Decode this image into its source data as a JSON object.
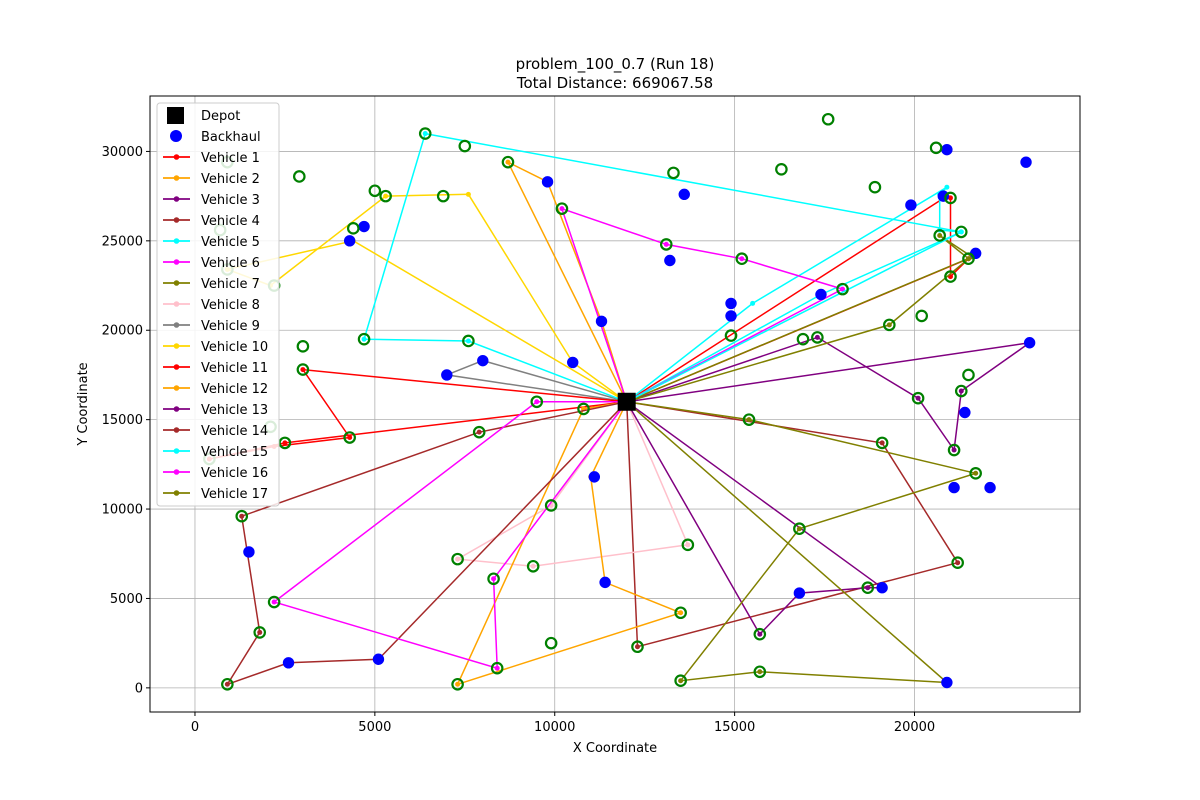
{
  "chart_data": {
    "type": "scatter",
    "title_line1": "problem_100_0.7 (Run 18)",
    "title_line2": "Total Distance: 669067.58",
    "xlabel": "X Coordinate",
    "ylabel": "Y Coordinate",
    "xlim": [
      -1250,
      24600
    ],
    "ylim": [
      -1350,
      33100
    ],
    "xticks": [
      0,
      5000,
      10000,
      15000,
      20000
    ],
    "yticks": [
      0,
      5000,
      10000,
      15000,
      20000,
      25000,
      30000
    ],
    "grid": true,
    "legend_position": "top-left",
    "depot": {
      "label": "Depot",
      "x": 12000,
      "y": 16000,
      "color": "#000000"
    },
    "backhaul_label": "Backhaul",
    "backhaul_color": "#0000ff",
    "linehaul_edge_color": "#008000",
    "routes": [
      {
        "name": "Vehicle 1",
        "color": "#ff0000",
        "points": [
          [
            20900,
            27500
          ],
          [
            21000,
            27400
          ],
          [
            21000,
            23000
          ],
          [
            21500,
            24000
          ]
        ]
      },
      {
        "name": "Vehicle 2",
        "color": "#ffa500",
        "points": [
          [
            8700,
            29400
          ],
          [
            9800,
            28300
          ],
          [
            11300,
            20500
          ]
        ]
      },
      {
        "name": "Vehicle 3",
        "color": "#800080",
        "points": [
          [
            17300,
            19600
          ],
          [
            20100,
            16200
          ],
          [
            21100,
            13300
          ],
          [
            21300,
            16600
          ],
          [
            23200,
            19300
          ]
        ]
      },
      {
        "name": "Vehicle 4",
        "color": "#a52a2a",
        "points": [
          [
            19100,
            13700
          ],
          [
            21200,
            7000
          ],
          [
            12300,
            2300
          ]
        ]
      },
      {
        "name": "Vehicle 5",
        "color": "#00ffff",
        "points": [
          [
            17400,
            22000
          ],
          [
            21300,
            25500
          ],
          [
            20700,
            25600
          ],
          [
            20700,
            27600
          ],
          [
            20900,
            28000
          ],
          [
            15500,
            21500
          ]
        ]
      },
      {
        "name": "Vehicle 6",
        "color": "#ff00ff",
        "points": [
          [
            10200,
            26800
          ],
          [
            13100,
            24800
          ],
          [
            15200,
            24000
          ],
          [
            18000,
            22300
          ]
        ]
      },
      {
        "name": "Vehicle 7",
        "color": "#808000",
        "points": [
          [
            19300,
            20300
          ],
          [
            21500,
            24000
          ],
          [
            20700,
            25300
          ],
          [
            21600,
            24100
          ]
        ]
      },
      {
        "name": "Vehicle 8",
        "color": "#ffc0cb",
        "points": [
          [
            9900,
            10200
          ],
          [
            7300,
            7200
          ],
          [
            9400,
            6800
          ],
          [
            13700,
            8000
          ]
        ]
      },
      {
        "name": "Vehicle 9",
        "color": "#808080",
        "points": [
          [
            7000,
            17500
          ],
          [
            8000,
            18300
          ]
        ]
      },
      {
        "name": "Vehicle 10",
        "color": "#ffd700",
        "points": [
          [
            10500,
            18200
          ],
          [
            7600,
            27600
          ],
          [
            5300,
            27500
          ],
          [
            2100,
            22500
          ],
          [
            900,
            23400
          ],
          [
            4400,
            25000
          ]
        ]
      },
      {
        "name": "Vehicle 11",
        "color": "#ff0000",
        "points": [
          [
            3000,
            17800
          ],
          [
            4300,
            14000
          ],
          [
            2200,
            13500
          ],
          [
            400,
            12800
          ],
          [
            2500,
            13700
          ]
        ]
      },
      {
        "name": "Vehicle 12",
        "color": "#ffa500",
        "points": [
          [
            10800,
            15600
          ],
          [
            7300,
            200
          ],
          [
            13500,
            4200
          ],
          [
            11400,
            5900
          ],
          [
            11000,
            11800
          ]
        ]
      },
      {
        "name": "Vehicle 13",
        "color": "#800080",
        "points": [
          [
            15700,
            3000
          ],
          [
            16800,
            5300
          ],
          [
            18700,
            5600
          ],
          [
            19100,
            5600
          ]
        ]
      },
      {
        "name": "Vehicle 14",
        "color": "#a52a2a",
        "points": [
          [
            7900,
            14300
          ],
          [
            1300,
            9600
          ],
          [
            1800,
            3100
          ],
          [
            900,
            200
          ],
          [
            2600,
            1400
          ],
          [
            5100,
            1600
          ]
        ]
      },
      {
        "name": "Vehicle 15",
        "color": "#00ffff",
        "points": [
          [
            7600,
            19400
          ],
          [
            4700,
            19500
          ],
          [
            6400,
            31000
          ],
          [
            21300,
            25500
          ]
        ]
      },
      {
        "name": "Vehicle 16",
        "color": "#ff00ff",
        "points": [
          [
            9500,
            16000
          ],
          [
            2200,
            4800
          ],
          [
            8400,
            1100
          ],
          [
            8300,
            6100
          ]
        ]
      },
      {
        "name": "Vehicle 17",
        "color": "#808000",
        "points": [
          [
            15400,
            15000
          ],
          [
            21700,
            12000
          ],
          [
            16800,
            8900
          ],
          [
            13500,
            400
          ],
          [
            15700,
            900
          ],
          [
            20900,
            300
          ]
        ]
      }
    ],
    "customers": [
      [
        0,
        0,
        0
      ],
      [
        23200,
        19300,
        1
      ],
      [
        22100,
        11200,
        1
      ],
      [
        21100,
        11200,
        1
      ],
      [
        21700,
        24300,
        1
      ],
      [
        23100,
        29400,
        1
      ],
      [
        20900,
        30100,
        1
      ],
      [
        19900,
        27000,
        1
      ],
      [
        17400,
        22000,
        1
      ],
      [
        14900,
        20800,
        1
      ],
      [
        14900,
        21500,
        1
      ],
      [
        13200,
        23900,
        1
      ],
      [
        13600,
        27600,
        1
      ],
      [
        9800,
        28300,
        1
      ],
      [
        11300,
        20500,
        1
      ],
      [
        10500,
        18200,
        1
      ],
      [
        8000,
        18300,
        1
      ],
      [
        7000,
        17500,
        1
      ],
      [
        4700,
        25800,
        1
      ],
      [
        4300,
        25000,
        1
      ],
      [
        11100,
        11800,
        1
      ],
      [
        11400,
        5900,
        1
      ],
      [
        19100,
        5600,
        1
      ],
      [
        20900,
        300,
        1
      ],
      [
        1500,
        7600,
        1
      ],
      [
        2600,
        1400,
        1
      ],
      [
        5100,
        1600,
        1
      ],
      [
        20800,
        27500,
        1
      ],
      [
        16800,
        5300,
        1
      ],
      [
        21400,
        15400,
        1
      ],
      [
        6400,
        31000,
        0
      ],
      [
        7500,
        30300,
        0
      ],
      [
        2900,
        28600,
        0
      ],
      [
        5000,
        27800,
        0
      ],
      [
        5300,
        27500,
        0
      ],
      [
        6900,
        27500,
        0
      ],
      [
        8700,
        29400,
        0
      ],
      [
        13300,
        28800,
        0
      ],
      [
        16300,
        29000,
        0
      ],
      [
        17600,
        31800,
        0
      ],
      [
        20600,
        30200,
        0
      ],
      [
        18900,
        28000,
        0
      ],
      [
        21000,
        27400,
        0
      ],
      [
        20700,
        25300,
        0
      ],
      [
        21300,
        25500,
        0
      ],
      [
        21500,
        24000,
        0
      ],
      [
        21000,
        23000,
        0
      ],
      [
        19300,
        20300,
        0
      ],
      [
        20200,
        20800,
        0
      ],
      [
        21500,
        17500,
        0
      ],
      [
        21300,
        16600,
        0
      ],
      [
        20100,
        16200,
        0
      ],
      [
        21100,
        13300,
        0
      ],
      [
        19100,
        13700,
        0
      ],
      [
        21700,
        12000,
        0
      ],
      [
        17300,
        19600,
        0
      ],
      [
        16900,
        19500,
        0
      ],
      [
        18000,
        22300,
        0
      ],
      [
        15200,
        24000,
        0
      ],
      [
        13100,
        24800,
        0
      ],
      [
        10200,
        26800,
        0
      ],
      [
        14900,
        19700,
        0
      ],
      [
        15400,
        15000,
        0
      ],
      [
        16800,
        8900,
        0
      ],
      [
        21200,
        7000,
        0
      ],
      [
        18700,
        5600,
        0
      ],
      [
        15700,
        3000,
        0
      ],
      [
        15700,
        900,
        0
      ],
      [
        13500,
        400,
        0
      ],
      [
        13500,
        4200,
        0
      ],
      [
        13700,
        8000,
        0
      ],
      [
        12300,
        2300,
        0
      ],
      [
        9900,
        2500,
        0
      ],
      [
        9400,
        6800,
        0
      ],
      [
        8300,
        6100,
        0
      ],
      [
        8400,
        1100,
        0
      ],
      [
        7300,
        200,
        0
      ],
      [
        7300,
        7200,
        0
      ],
      [
        9900,
        10200,
        0
      ],
      [
        10800,
        15600,
        0
      ],
      [
        9500,
        16000,
        0
      ],
      [
        7900,
        14300,
        0
      ],
      [
        7600,
        19400,
        0
      ],
      [
        4700,
        19500,
        0
      ],
      [
        3000,
        17800,
        0
      ],
      [
        4300,
        14000,
        0
      ],
      [
        2500,
        13700,
        0
      ],
      [
        2200,
        4800,
        0
      ],
      [
        1800,
        3100,
        0
      ],
      [
        900,
        200,
        0
      ],
      [
        1300,
        9600,
        0
      ],
      [
        400,
        12800,
        0
      ],
      [
        2200,
        22500,
        0
      ],
      [
        3000,
        19100,
        0
      ],
      [
        700,
        25600,
        0
      ],
      [
        4400,
        25700,
        0
      ],
      [
        900,
        29400,
        0
      ],
      [
        900,
        23400,
        0
      ],
      [
        2100,
        14600,
        0
      ],
      [
        12000,
        16000,
        0
      ]
    ]
  }
}
